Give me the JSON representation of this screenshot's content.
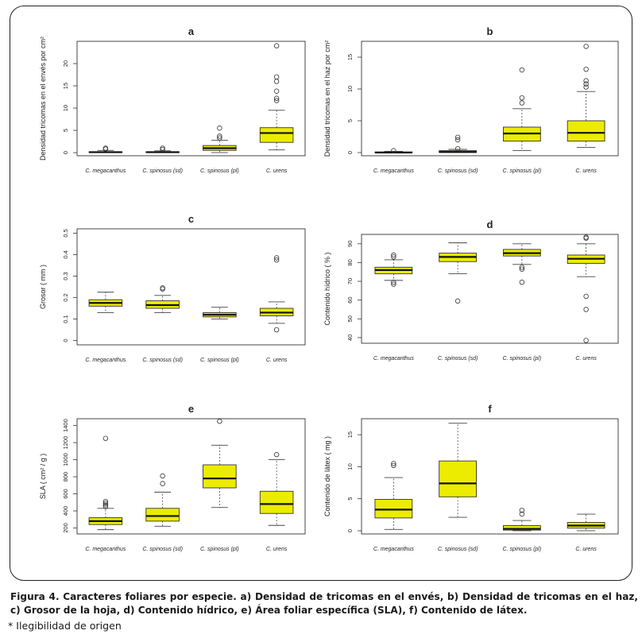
{
  "caption": "Figura 4. Caracteres foliares por especie. a) Densidad de tricomas en el envés, b) Densidad de tricomas en el haz, c) Grosor de la hoja, d) Contenido hídrico, e) Área foliar específica (SLA), f) Contenido de látex.",
  "note": "* Ilegibilidad de origen",
  "colors": {
    "box_fill": "#ecec00",
    "axis": "#333333",
    "frame": "#222222"
  },
  "chart_data": [
    {
      "type": "box",
      "title": "a",
      "ylabel": "Densidad tricomas en el envés por cm²",
      "categories": [
        "C. megacanthus",
        "C. spinosus (sd)",
        "C. spinosus (pl)",
        "C. urens"
      ],
      "ylim": [
        -0.7,
        25
      ],
      "yticks": [
        0,
        5,
        10,
        15,
        20
      ],
      "boxes": [
        {
          "min": 0,
          "q1": 0,
          "median": 0.1,
          "q3": 0.2,
          "max": 0.5,
          "outliers": [
            0.8,
            1.0
          ]
        },
        {
          "min": 0,
          "q1": 0,
          "median": 0.1,
          "q3": 0.2,
          "max": 0.4,
          "outliers": [
            0.7,
            1.0
          ]
        },
        {
          "min": 0,
          "q1": 0.5,
          "median": 1.0,
          "q3": 1.6,
          "max": 2.8,
          "outliers": [
            3.3,
            3.7,
            5.5
          ]
        },
        {
          "min": 0.6,
          "q1": 2.3,
          "median": 4.4,
          "q3": 5.6,
          "max": 9.5,
          "outliers": [
            11.7,
            12.2,
            13.8,
            16.0,
            17.0,
            24.0
          ]
        }
      ]
    },
    {
      "type": "box",
      "title": "b",
      "ylabel": "Densidad tricomas en el haz por cm²",
      "categories": [
        "C. megacanthus",
        "C. spinosus (sd)",
        "C. spinosus (pl)",
        "C. urens"
      ],
      "ylim": [
        -0.5,
        17.5
      ],
      "yticks": [
        0,
        5,
        10,
        15
      ],
      "boxes": [
        {
          "min": 0,
          "q1": 0,
          "median": 0,
          "q3": 0.1,
          "max": 0.2,
          "outliers": [
            0.3
          ]
        },
        {
          "min": 0,
          "q1": 0,
          "median": 0.1,
          "q3": 0.3,
          "max": 0.5,
          "outliers": [
            0.6,
            2.0,
            2.4
          ]
        },
        {
          "min": 0.3,
          "q1": 1.8,
          "median": 3.0,
          "q3": 4.0,
          "max": 6.9,
          "outliers": [
            7.8,
            8.6,
            13.0
          ]
        },
        {
          "min": 0.8,
          "q1": 1.8,
          "median": 3.1,
          "q3": 5.0,
          "max": 9.6,
          "outliers": [
            10.3,
            10.8,
            11.3,
            13.1,
            16.7
          ]
        }
      ]
    },
    {
      "type": "box",
      "title": "c",
      "ylabel": "Grosor ( mm )",
      "categories": [
        "C. megacanthus",
        "C. spinosus (sd)",
        "C. spinosus (pl)",
        "C. urens"
      ],
      "ylim": [
        -0.02,
        0.52
      ],
      "yticks": [
        0.0,
        0.1,
        0.2,
        0.3,
        0.4,
        0.5
      ],
      "boxes": [
        {
          "min": 0.13,
          "q1": 0.16,
          "median": 0.175,
          "q3": 0.19,
          "max": 0.225,
          "outliers": []
        },
        {
          "min": 0.13,
          "q1": 0.15,
          "median": 0.165,
          "q3": 0.185,
          "max": 0.21,
          "outliers": [
            0.24,
            0.245
          ]
        },
        {
          "min": 0.1,
          "q1": 0.11,
          "median": 0.12,
          "q3": 0.13,
          "max": 0.155,
          "outliers": []
        },
        {
          "min": 0.08,
          "q1": 0.115,
          "median": 0.13,
          "q3": 0.15,
          "max": 0.18,
          "outliers": [
            0.05,
            0.375,
            0.385
          ]
        }
      ]
    },
    {
      "type": "box",
      "title": "d",
      "ylabel": "Contenido hídrico  ( % )",
      "categories": [
        "C. megacanthus",
        "C. spinosus (sd)",
        "C. spinosus (pl)",
        "C. urens"
      ],
      "ylim": [
        37,
        95
      ],
      "yticks": [
        40,
        50,
        60,
        70,
        80,
        90
      ],
      "boxes": [
        {
          "min": 70.5,
          "q1": 74.0,
          "median": 76.0,
          "q3": 77.5,
          "max": 81.5,
          "outliers": [
            68.5,
            69.5,
            83.0,
            84.0
          ]
        },
        {
          "min": 74.0,
          "q1": 80.5,
          "median": 83.0,
          "q3": 85.0,
          "max": 90.5,
          "outliers": [
            59.5
          ]
        },
        {
          "min": 79.0,
          "q1": 83.5,
          "median": 85.0,
          "q3": 87.0,
          "max": 90.0,
          "outliers": [
            69.5,
            76.5,
            77.5
          ]
        },
        {
          "min": 72.5,
          "q1": 79.5,
          "median": 82.0,
          "q3": 84.0,
          "max": 90.0,
          "outliers": [
            38.5,
            55.0,
            62.0,
            93.0,
            93.5
          ]
        }
      ]
    },
    {
      "type": "box",
      "title": "e",
      "ylabel": "SLA  ( cm² / g )",
      "categories": [
        "C. megacanthus",
        "C. spinosus (sd)",
        "C. spinosus (pl)",
        "C. urens"
      ],
      "ylim": [
        130,
        1480
      ],
      "yticks": [
        200,
        400,
        600,
        800,
        1000,
        1200,
        1400
      ],
      "boxes": [
        {
          "min": 180,
          "q1": 240,
          "median": 280,
          "q3": 320,
          "max": 430,
          "outliers": [
            450,
            470,
            490,
            510,
            1250
          ]
        },
        {
          "min": 220,
          "q1": 280,
          "median": 340,
          "q3": 430,
          "max": 620,
          "outliers": [
            720,
            810
          ]
        },
        {
          "min": 440,
          "q1": 670,
          "median": 780,
          "q3": 940,
          "max": 1170,
          "outliers": [
            1450
          ]
        },
        {
          "min": 230,
          "q1": 370,
          "median": 480,
          "q3": 630,
          "max": 1000,
          "outliers": [
            1060
          ]
        }
      ]
    },
    {
      "type": "box",
      "title": "f",
      "ylabel": "Contenido de látex ( mg )",
      "categories": [
        "C. megacanthus",
        "C. spinosus (sd)",
        "C. spinosus (pl)",
        "C. urens"
      ],
      "ylim": [
        -0.5,
        17.5
      ],
      "yticks": [
        0,
        5,
        10,
        15
      ],
      "boxes": [
        {
          "min": 0.2,
          "q1": 2.0,
          "median": 3.3,
          "q3": 4.9,
          "max": 8.3,
          "outliers": [
            10.2,
            10.5
          ]
        },
        {
          "min": 2.1,
          "q1": 5.3,
          "median": 7.4,
          "q3": 10.9,
          "max": 16.8,
          "outliers": []
        },
        {
          "min": 0,
          "q1": 0.1,
          "median": 0.3,
          "q3": 0.8,
          "max": 1.6,
          "outliers": [
            2.6,
            3.2
          ]
        },
        {
          "min": 0,
          "q1": 0.4,
          "median": 0.8,
          "q3": 1.3,
          "max": 2.6,
          "outliers": []
        }
      ]
    }
  ]
}
